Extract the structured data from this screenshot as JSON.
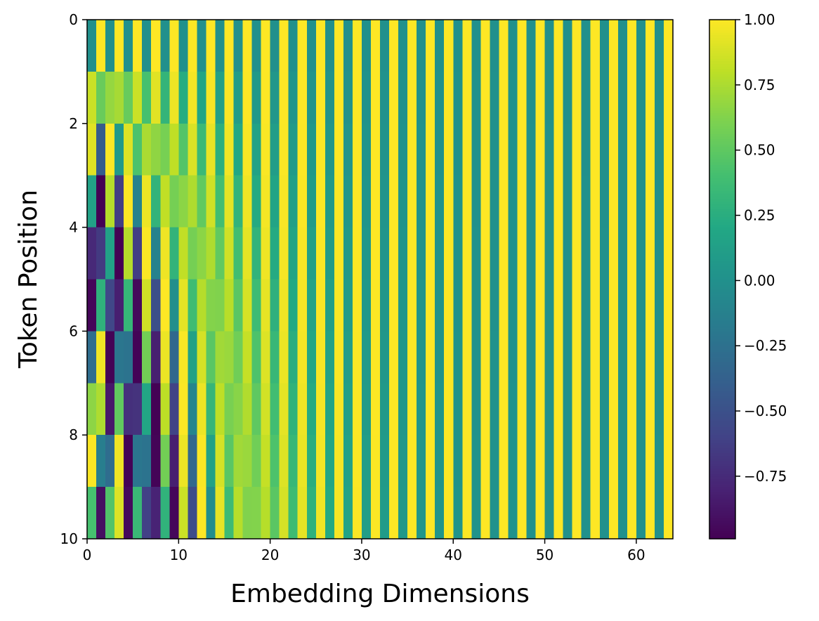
{
  "chart_data": {
    "type": "heatmap",
    "title": "",
    "xlabel": "Embedding Dimensions",
    "ylabel": "Token Position",
    "xlim": [
      0,
      64
    ],
    "ylim": [
      10,
      0
    ],
    "rows": 10,
    "cols": 64,
    "colormap": "viridis",
    "value_range": [
      -1.0,
      1.0
    ],
    "value_function": "positional encoding: PE(pos, 2i) = sin(pos / 10000^(2i/64)), PE(pos, 2i+1) = cos(pos / 10000^(2i/64))",
    "x_ticks": [
      "0",
      "10",
      "20",
      "30",
      "40",
      "50",
      "60"
    ],
    "y_ticks": [
      "0",
      "2",
      "4",
      "6",
      "8",
      "10"
    ],
    "colorbar_ticks": [
      "1.00",
      "0.75",
      "0.50",
      "0.25",
      "0.00",
      "−0.25",
      "−0.50",
      "−0.75"
    ],
    "colorbar_tick_values": [
      1.0,
      0.75,
      0.5,
      0.25,
      0.0,
      -0.25,
      -0.5,
      -0.75
    ],
    "grid": false
  }
}
